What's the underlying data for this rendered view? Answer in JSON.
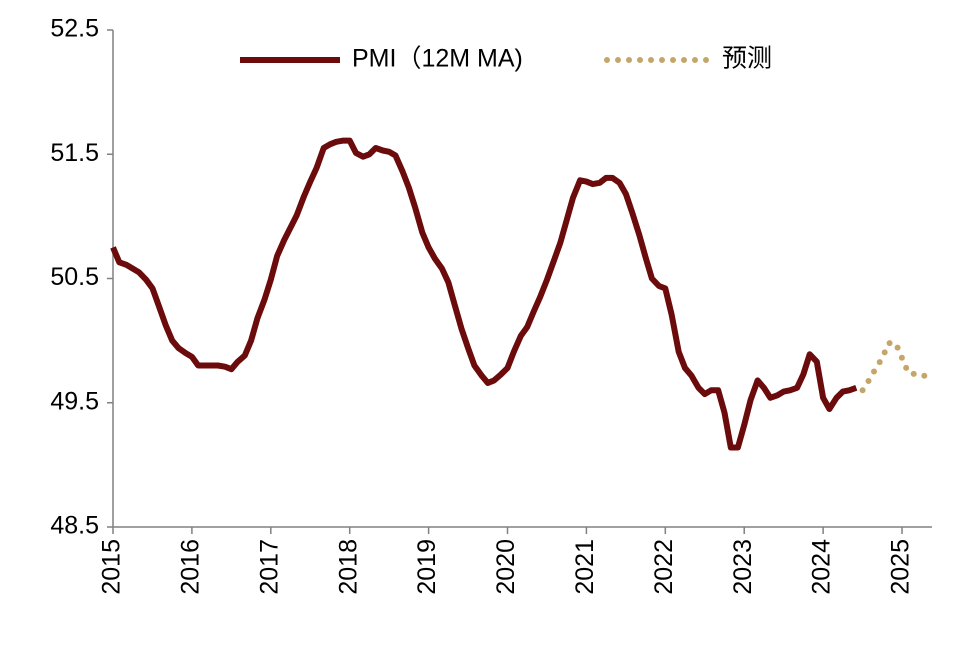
{
  "chart_data": {
    "type": "line",
    "xlim": [
      2015,
      2025.38
    ],
    "xticks": [
      2015,
      2016,
      2017,
      2018,
      2019,
      2020,
      2021,
      2022,
      2023,
      2024,
      2025
    ],
    "ylim": [
      48.5,
      52.5
    ],
    "yticks": [
      48.5,
      49.5,
      50.5,
      51.5,
      52.5
    ],
    "legend": "top",
    "series": [
      {
        "name": "PMI（12M MA)",
        "color": "#6b0b0b",
        "style": "solid",
        "x": [
          2015,
          2015.08,
          2015.17,
          2015.25,
          2015.33,
          2015.42,
          2015.5,
          2015.58,
          2015.67,
          2015.75,
          2015.83,
          2015.92,
          2016,
          2016.08,
          2016.17,
          2016.25,
          2016.33,
          2016.42,
          2016.5,
          2016.58,
          2016.67,
          2016.75,
          2016.83,
          2016.92,
          2017,
          2017.08,
          2017.17,
          2017.25,
          2017.33,
          2017.42,
          2017.5,
          2017.58,
          2017.67,
          2017.75,
          2017.83,
          2017.92,
          2018,
          2018.08,
          2018.17,
          2018.25,
          2018.33,
          2018.42,
          2018.5,
          2018.58,
          2018.67,
          2018.75,
          2018.83,
          2018.92,
          2019,
          2019.08,
          2019.17,
          2019.25,
          2019.33,
          2019.42,
          2019.5,
          2019.58,
          2019.67,
          2019.75,
          2019.83,
          2019.92,
          2020,
          2020.08,
          2020.17,
          2020.25,
          2020.33,
          2020.42,
          2020.5,
          2020.58,
          2020.67,
          2020.75,
          2020.83,
          2020.92,
          2021,
          2021.08,
          2021.17,
          2021.25,
          2021.33,
          2021.42,
          2021.5,
          2021.58,
          2021.67,
          2021.75,
          2021.83,
          2021.92,
          2022,
          2022.08,
          2022.17,
          2022.25,
          2022.33,
          2022.42,
          2022.5,
          2022.58,
          2022.67,
          2022.75,
          2022.83,
          2022.92,
          2023,
          2023.08,
          2023.17,
          2023.25,
          2023.33,
          2023.42,
          2023.5,
          2023.58,
          2023.67,
          2023.75,
          2023.83,
          2023.92,
          2024,
          2024.08,
          2024.17,
          2024.25,
          2024.33,
          2024.42
        ],
        "values": [
          50.75,
          50.63,
          50.61,
          50.58,
          50.55,
          50.49,
          50.42,
          50.28,
          50.12,
          50.0,
          49.94,
          49.9,
          49.87,
          49.8,
          49.8,
          49.8,
          49.8,
          49.79,
          49.77,
          49.83,
          49.88,
          50.0,
          50.18,
          50.33,
          50.49,
          50.68,
          50.81,
          50.91,
          51.01,
          51.16,
          51.28,
          51.39,
          51.55,
          51.58,
          51.6,
          51.61,
          51.61,
          51.51,
          51.48,
          51.5,
          51.55,
          51.53,
          51.52,
          51.49,
          51.36,
          51.23,
          51.07,
          50.87,
          50.75,
          50.66,
          50.58,
          50.47,
          50.29,
          50.09,
          49.94,
          49.8,
          49.72,
          49.66,
          49.68,
          49.73,
          49.78,
          49.91,
          50.04,
          50.11,
          50.23,
          50.36,
          50.49,
          50.63,
          50.79,
          50.97,
          51.15,
          51.29,
          51.28,
          51.26,
          51.27,
          51.31,
          51.31,
          51.27,
          51.18,
          51.03,
          50.85,
          50.67,
          50.5,
          50.44,
          50.42,
          50.21,
          49.91,
          49.78,
          49.72,
          49.62,
          49.57,
          49.6,
          49.6,
          49.42,
          49.14,
          49.14,
          49.32,
          49.52,
          49.68,
          49.62,
          49.54,
          49.56,
          49.59,
          49.6,
          49.62,
          49.73,
          49.89,
          49.83,
          49.54,
          49.45,
          49.54,
          49.59,
          49.6,
          49.62
        ]
      },
      {
        "name": "预测",
        "color": "#c4a66a",
        "style": "dotted",
        "x": [
          2024.5,
          2024.58,
          2024.67,
          2024.75,
          2024.83,
          2024.92,
          2025,
          2025.08,
          2025.17,
          2025.25,
          2025.33
        ],
        "values": [
          49.6,
          49.68,
          49.78,
          49.86,
          49.98,
          49.98,
          49.86,
          49.74,
          49.73,
          49.73,
          49.7
        ]
      }
    ]
  }
}
